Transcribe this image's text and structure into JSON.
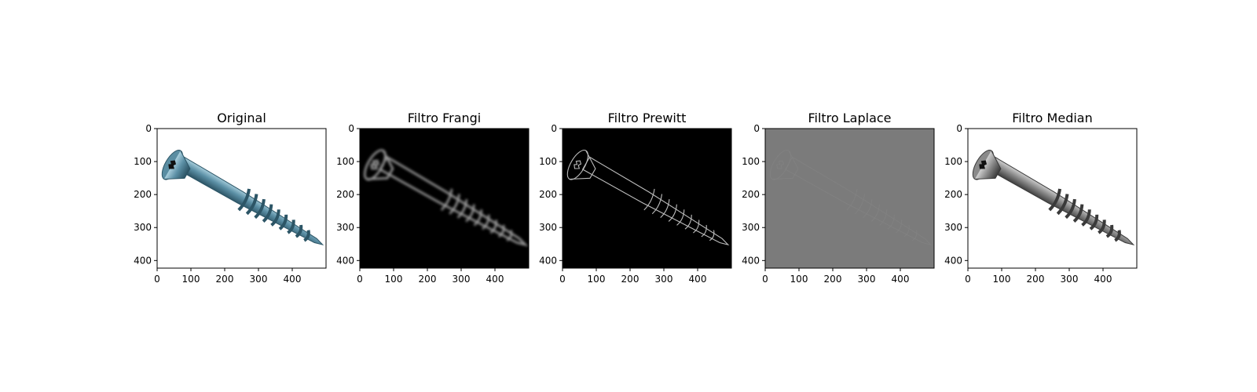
{
  "panels": [
    {
      "title": "Original",
      "background": "#ffffff",
      "mode": "color",
      "xticks": [
        "0",
        "100",
        "200",
        "300",
        "400"
      ],
      "yticks": [
        "0",
        "100",
        "200",
        "300",
        "400"
      ]
    },
    {
      "title": "Filtro Frangi",
      "background": "#000000",
      "mode": "frangi",
      "xticks": [
        "0",
        "100",
        "200",
        "300",
        "400"
      ],
      "yticks": [
        "0",
        "100",
        "200",
        "300",
        "400"
      ]
    },
    {
      "title": "Filtro Prewitt",
      "background": "#000000",
      "mode": "prewitt",
      "xticks": [
        "0",
        "100",
        "200",
        "300",
        "400"
      ],
      "yticks": [
        "0",
        "100",
        "200",
        "300",
        "400"
      ]
    },
    {
      "title": "Filtro Laplace",
      "background": "#7b7b7b",
      "mode": "laplace",
      "xticks": [
        "0",
        "100",
        "200",
        "300",
        "400"
      ],
      "yticks": [
        "0",
        "100",
        "200",
        "300",
        "400"
      ]
    },
    {
      "title": "Filtro Median",
      "background": "#ffffff",
      "mode": "gray",
      "xticks": [
        "0",
        "100",
        "200",
        "300",
        "400"
      ],
      "yticks": [
        "0",
        "100",
        "200",
        "300",
        "400"
      ]
    }
  ],
  "colors": {
    "screw_color": "#5a8da2",
    "screw_color_dark": "#2c5566",
    "screw_gray": "#8a8a8a",
    "screw_gray_dark": "#3a3a3a"
  }
}
